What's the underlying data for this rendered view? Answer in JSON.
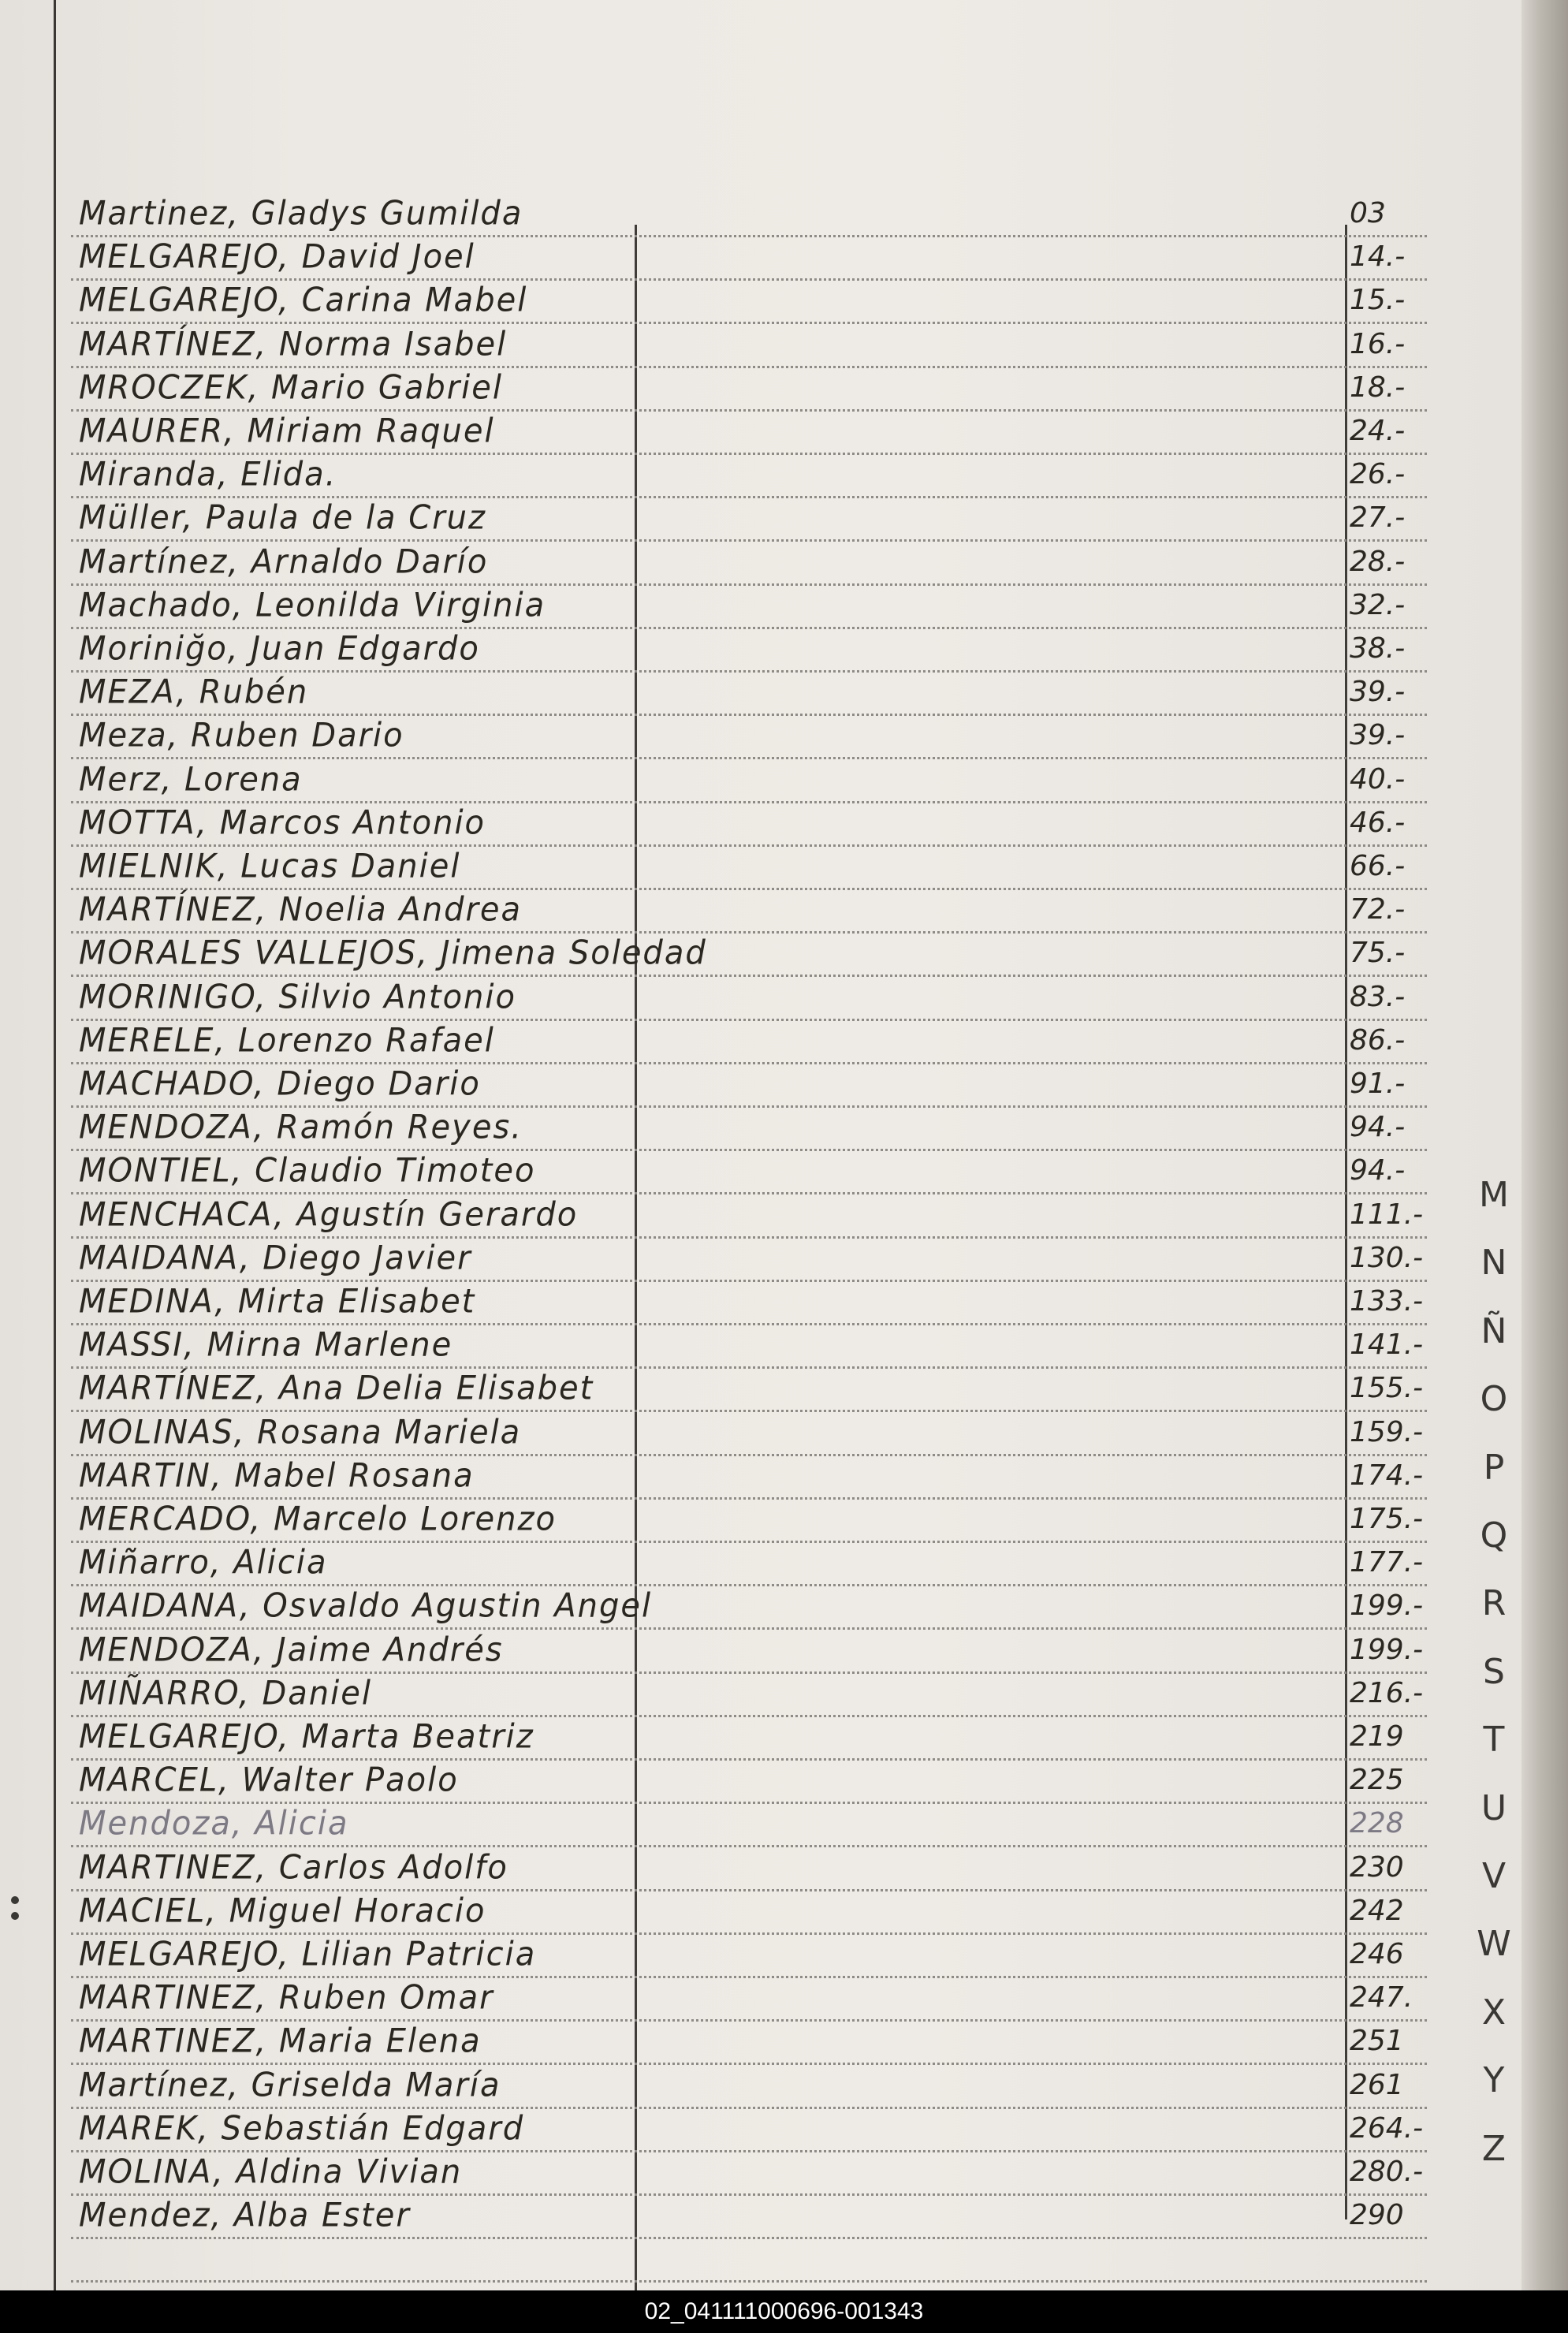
{
  "entries": [
    {
      "name": "Martinez, Gladys Gumilda",
      "number": "03"
    },
    {
      "name": "MELGAREJO, David Joel",
      "number": "14.-"
    },
    {
      "name": "MELGAREJO, Carina Mabel",
      "number": "15.-"
    },
    {
      "name": "MARTÍNEZ, Norma Isabel",
      "number": "16.-"
    },
    {
      "name": "MROCZEK, Mario Gabriel",
      "number": "18.-"
    },
    {
      "name": "MAURER, Miriam Raquel",
      "number": "24.-"
    },
    {
      "name": "Miranda, Elida.",
      "number": "26.-"
    },
    {
      "name": "Müller, Paula de la Cruz",
      "number": "27.-"
    },
    {
      "name": "Martínez, Arnaldo Darío",
      "number": "28.-"
    },
    {
      "name": "Machado, Leonilda Virginia",
      "number": "32.-"
    },
    {
      "name": "Moriniğo, Juan Edgardo",
      "number": "38.-"
    },
    {
      "name": "MEZA, Rubén",
      "number": "39.-"
    },
    {
      "name": "Meza, Ruben Dario",
      "number": "39.-"
    },
    {
      "name": "Merz, Lorena",
      "number": "40.-"
    },
    {
      "name": "MOTTA, Marcos Antonio",
      "number": "46.-"
    },
    {
      "name": "MIELNIK, Lucas Daniel",
      "number": "66.-"
    },
    {
      "name": "MARTÍNEZ, Noelia Andrea",
      "number": "72.-"
    },
    {
      "name": "MORALES VALLEJOS, Jimena Soledad",
      "number": "75.-"
    },
    {
      "name": "MORINIGO, Silvio Antonio",
      "number": "83.-"
    },
    {
      "name": "MERELE, Lorenzo Rafael",
      "number": "86.-"
    },
    {
      "name": "MACHADO, Diego Dario",
      "number": "91.-"
    },
    {
      "name": "MENDOZA, Ramón Reyes.",
      "number": "94.-"
    },
    {
      "name": "MONTIEL, Claudio Timoteo",
      "number": "94.-"
    },
    {
      "name": "MENCHACA, Agustín Gerardo",
      "number": "111.-"
    },
    {
      "name": "MAIDANA, Diego Javier",
      "number": "130.-"
    },
    {
      "name": "MEDINA, Mirta Elisabet",
      "number": "133.-"
    },
    {
      "name": "MASSI, Mirna Marlene",
      "number": "141.-"
    },
    {
      "name": "MARTÍNEZ, Ana Delia Elisabet",
      "number": "155.-"
    },
    {
      "name": "MOLINAS, Rosana Mariela",
      "number": "159.-"
    },
    {
      "name": "MARTIN, Mabel Rosana",
      "number": "174.-"
    },
    {
      "name": "MERCADO, Marcelo Lorenzo",
      "number": "175.-"
    },
    {
      "name": "Miñarro, Alicia",
      "number": "177.-"
    },
    {
      "name": "MAIDANA, Osvaldo Agustin Angel",
      "number": "199.-"
    },
    {
      "name": "MENDOZA, Jaime Andrés",
      "number": "199.-"
    },
    {
      "name": "MIÑARRO, Daniel",
      "number": "216.-"
    },
    {
      "name": "MELGAREJO, Marta Beatriz",
      "number": "219"
    },
    {
      "name": "MARCEL, Walter Paolo",
      "number": "225"
    },
    {
      "name": "Mendoza, Alicia",
      "number": "228",
      "faint": true
    },
    {
      "name": "MARTINEZ, Carlos Adolfo",
      "number": "230"
    },
    {
      "name": "MACIEL, Miguel Horacio",
      "number": "242"
    },
    {
      "name": "MELGAREJO, Lilian Patricia",
      "number": "246"
    },
    {
      "name": "MARTINEZ, Ruben Omar",
      "number": "247."
    },
    {
      "name": "MARTINEZ, Maria Elena",
      "number": "251"
    },
    {
      "name": "Martínez, Griselda María",
      "number": "261"
    },
    {
      "name": "MAREK, Sebastián Edgard",
      "number": "264.-"
    },
    {
      "name": "MOLINA, Aldina Vivian",
      "number": "280.-"
    },
    {
      "name": "Mendez, Alba Ester",
      "number": "290"
    }
  ],
  "index_tabs": [
    "M",
    "N",
    "Ñ",
    "O",
    "P",
    "Q",
    "R",
    "S",
    "T",
    "U",
    "V",
    "W",
    "X",
    "Y",
    "Z"
  ],
  "footer": {
    "id": "02_041111000696-001343"
  }
}
